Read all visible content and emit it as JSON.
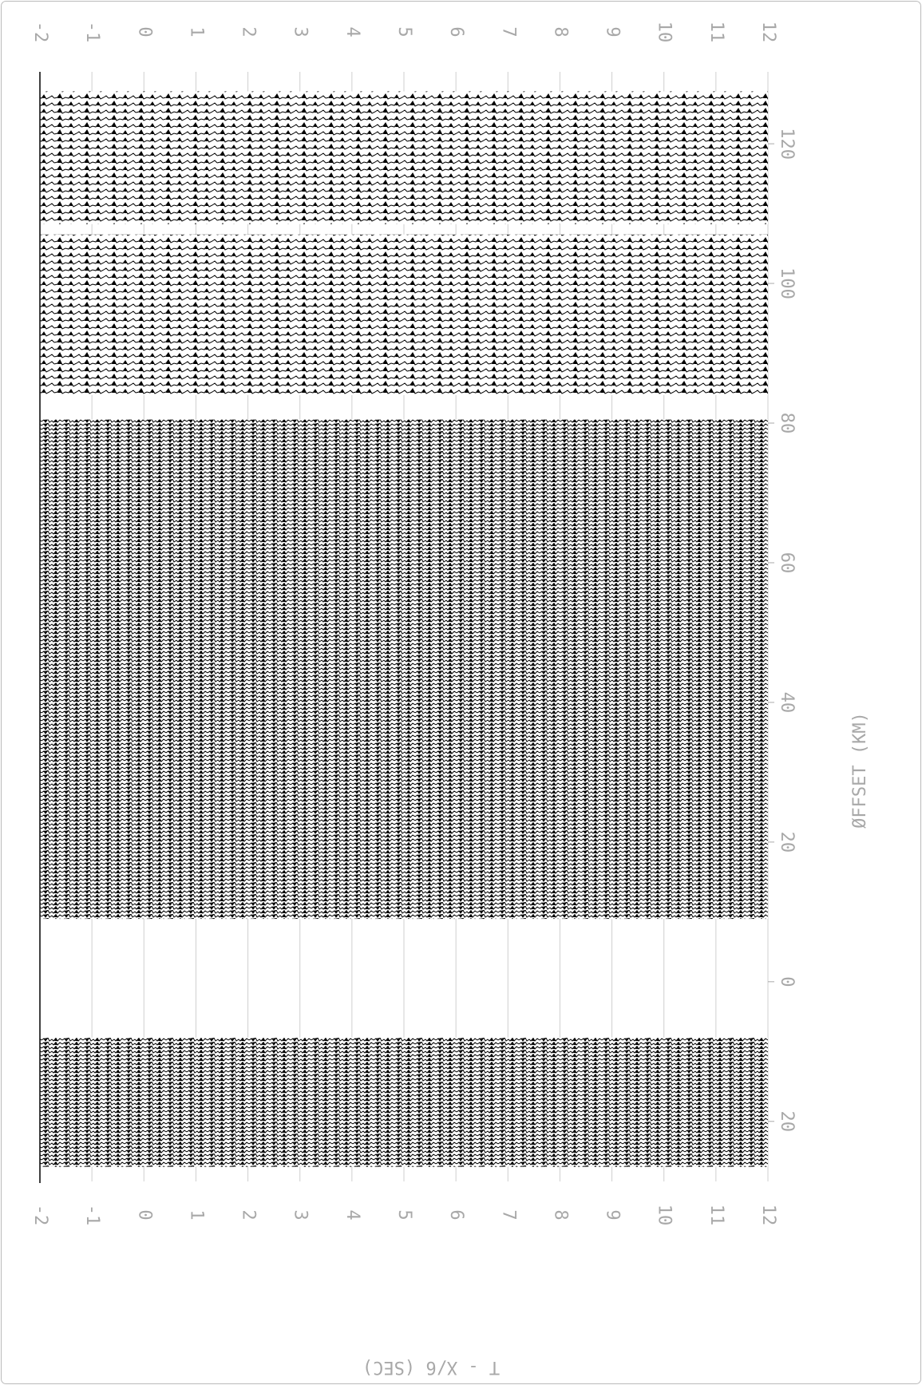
{
  "chart_data": {
    "type": "record-section",
    "x_label": "T - X/6 (SEC)",
    "y_label": "ØFFSET (KM)",
    "xlim": [
      -2,
      12
    ],
    "xticks": [
      -2,
      -1,
      0,
      1,
      2,
      3,
      4,
      5,
      6,
      7,
      8,
      9,
      10,
      11,
      12
    ],
    "ylim": [
      -28.6,
      130.3
    ],
    "yticks": [
      {
        "value": -20,
        "label": "20"
      },
      0,
      20,
      40,
      60,
      80,
      100,
      120
    ],
    "grid": true,
    "trace_segments": [
      {
        "from": -26.5,
        "to": -8
      },
      {
        "from": 9,
        "to": 80.5
      },
      {
        "from": 84,
        "to": 107
      },
      {
        "from": 108.5,
        "to": 127.5
      }
    ]
  }
}
